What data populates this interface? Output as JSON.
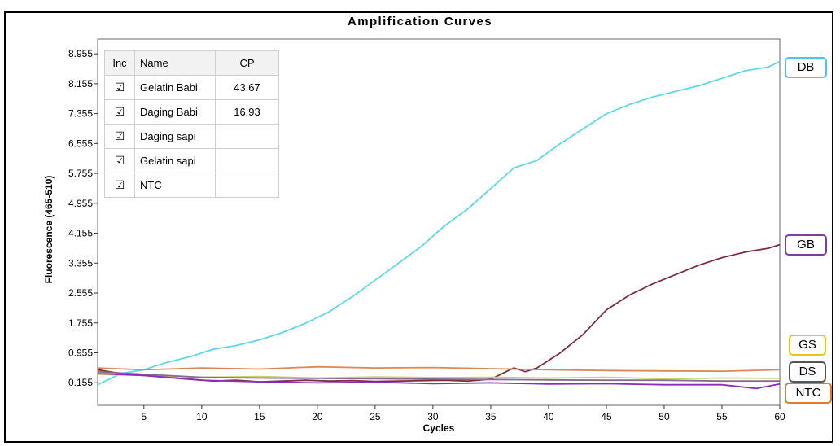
{
  "chart_data": {
    "type": "line",
    "title": "Amplification Curves",
    "xlabel": "Cycles",
    "ylabel": "Fluorescence (465-510)",
    "xlim": [
      1,
      60
    ],
    "ylim": [
      -0.45,
      9.35
    ],
    "x_ticks": [
      5,
      10,
      15,
      20,
      25,
      30,
      35,
      40,
      45,
      50,
      55,
      60
    ],
    "y_ticks": [
      0.155,
      0.955,
      1.755,
      2.555,
      3.355,
      4.155,
      4.955,
      5.755,
      6.555,
      7.355,
      8.155,
      8.955
    ],
    "y_tick_labels": [
      "0.155",
      "0.955",
      "1.755",
      "2.555",
      "3.355",
      "4.155",
      "4.955",
      "5.755",
      "6.555",
      "7.355",
      "8.155",
      "8.955"
    ],
    "grid": false,
    "series": [
      {
        "name": "Daging Babi",
        "tag": "DB",
        "color": "#5ed8e6",
        "tag_color": "#4fc3e8",
        "x": [
          1,
          3,
          5,
          7,
          9,
          11,
          13,
          15,
          17,
          19,
          21,
          23,
          25,
          27,
          29,
          31,
          33,
          35,
          37,
          39,
          41,
          43,
          45,
          47,
          49,
          51,
          53,
          55,
          57,
          59,
          60
        ],
        "y": [
          0.1,
          0.4,
          0.5,
          0.7,
          0.85,
          1.05,
          1.15,
          1.3,
          1.5,
          1.75,
          2.05,
          2.45,
          2.9,
          3.35,
          3.8,
          4.35,
          4.8,
          5.35,
          5.9,
          6.1,
          6.55,
          6.95,
          7.35,
          7.6,
          7.8,
          7.95,
          8.1,
          8.3,
          8.5,
          8.6,
          8.75
        ]
      },
      {
        "name": "Gelatin Babi",
        "tag": "GB",
        "color": "#7b2f3c",
        "tag_color": "#7a3fa0",
        "x": [
          1,
          3,
          5,
          7,
          9,
          11,
          13,
          15,
          17,
          19,
          21,
          23,
          25,
          27,
          29,
          31,
          33,
          35,
          37,
          38,
          39,
          41,
          43,
          45,
          47,
          49,
          51,
          53,
          55,
          57,
          59,
          60
        ],
        "y": [
          0.5,
          0.4,
          0.35,
          0.3,
          0.25,
          0.2,
          0.22,
          0.18,
          0.2,
          0.22,
          0.2,
          0.21,
          0.19,
          0.2,
          0.21,
          0.22,
          0.2,
          0.25,
          0.55,
          0.45,
          0.55,
          0.95,
          1.45,
          2.1,
          2.5,
          2.8,
          3.05,
          3.3,
          3.5,
          3.65,
          3.75,
          3.85
        ]
      },
      {
        "name": "Gelatin sapi",
        "tag": "GS",
        "color": "#c7cf6e",
        "tag_color": "#f0c020",
        "x": [
          1,
          5,
          10,
          15,
          20,
          25,
          30,
          35,
          40,
          45,
          50,
          55,
          60
        ],
        "y": [
          0.38,
          0.35,
          0.3,
          0.32,
          0.28,
          0.31,
          0.29,
          0.3,
          0.28,
          0.3,
          0.26,
          0.28,
          0.27
        ]
      },
      {
        "name": "Daging sapi",
        "tag": "DS",
        "color": "#8a6a8a",
        "tag_color": "#555555",
        "x": [
          1,
          5,
          10,
          15,
          20,
          25,
          30,
          35,
          40,
          45,
          50,
          55,
          60
        ],
        "y": [
          0.45,
          0.38,
          0.3,
          0.28,
          0.27,
          0.26,
          0.25,
          0.24,
          0.23,
          0.22,
          0.22,
          0.2,
          0.2
        ]
      },
      {
        "name": "NTC",
        "tag": "NTC",
        "color": "#d98a5a",
        "tag_color": "#e07a30",
        "x": [
          1,
          5,
          10,
          15,
          20,
          25,
          30,
          35,
          40,
          45,
          50,
          55,
          60
        ],
        "y": [
          0.55,
          0.5,
          0.55,
          0.52,
          0.58,
          0.55,
          0.56,
          0.53,
          0.5,
          0.48,
          0.47,
          0.46,
          0.5
        ]
      },
      {
        "name": "",
        "color": "#8a2fb5",
        "x": [
          1,
          5,
          10,
          15,
          20,
          25,
          30,
          35,
          40,
          45,
          50,
          55,
          58,
          60
        ],
        "y": [
          0.4,
          0.35,
          0.22,
          0.18,
          0.15,
          0.17,
          0.13,
          0.15,
          0.12,
          0.13,
          0.1,
          0.1,
          0.0,
          0.12
        ]
      }
    ],
    "legend_table": {
      "headers": [
        "Inc",
        "Name",
        "CP"
      ],
      "rows": [
        {
          "inc": "☑",
          "name": "Gelatin Babi",
          "cp": "43.67"
        },
        {
          "inc": "☑",
          "name": "Daging Babi",
          "cp": "16.93"
        },
        {
          "inc": "☑",
          "name": "Daging sapi",
          "cp": ""
        },
        {
          "inc": "☑",
          "name": "Gelatin sapi",
          "cp": ""
        },
        {
          "inc": "☑",
          "name": "NTC",
          "cp": ""
        }
      ]
    }
  }
}
